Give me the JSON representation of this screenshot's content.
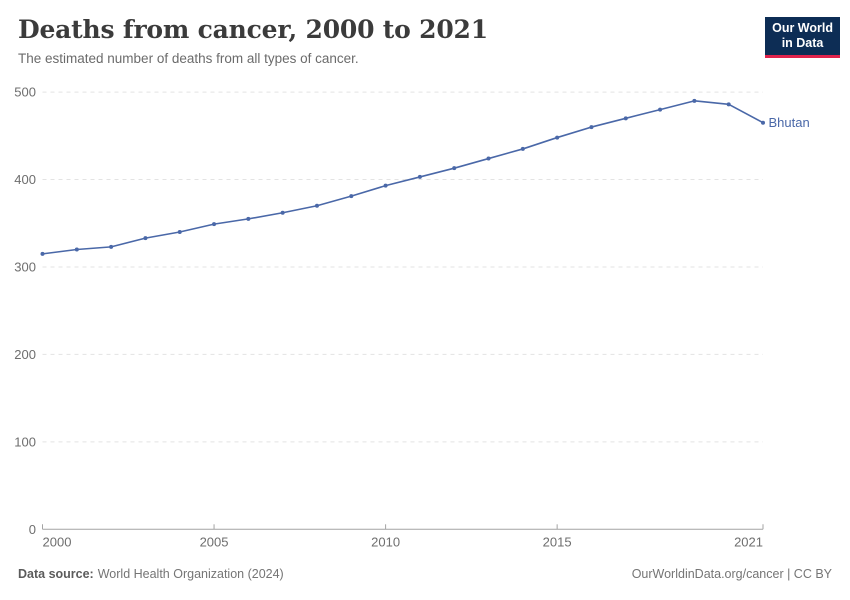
{
  "header": {
    "title": "Deaths from cancer, 2000 to 2021",
    "subtitle": "The estimated number of deaths from all types of cancer.",
    "logo": {
      "line1": "Our World",
      "line2": "in Data",
      "bg_color": "#0d2d55",
      "accent_color": "#e0234c"
    }
  },
  "chart_data": {
    "type": "line",
    "title": "Deaths from cancer, 2000 to 2021",
    "xlabel": "",
    "ylabel": "",
    "xlim": [
      2000,
      2021
    ],
    "ylim": [
      0,
      500
    ],
    "x_ticks": [
      2000,
      2005,
      2010,
      2015,
      2021
    ],
    "y_ticks": [
      0,
      100,
      200,
      300,
      400,
      500
    ],
    "grid": "horizontal-dashed",
    "legend_position": "end-of-line-label",
    "series": [
      {
        "name": "Bhutan",
        "color": "#4a68a8",
        "x": [
          2000,
          2001,
          2002,
          2003,
          2004,
          2005,
          2006,
          2007,
          2008,
          2009,
          2010,
          2011,
          2012,
          2013,
          2014,
          2015,
          2016,
          2017,
          2018,
          2019,
          2020,
          2021
        ],
        "values": [
          315,
          320,
          323,
          333,
          340,
          349,
          355,
          362,
          370,
          381,
          393,
          403,
          413,
          424,
          435,
          448,
          460,
          470,
          480,
          490,
          486,
          465
        ]
      }
    ]
  },
  "footer": {
    "source_label": "Data source:",
    "source_text": "World Health Organization (2024)",
    "license_text": "OurWorldinData.org/cancer | CC BY"
  },
  "colors": {
    "line": "#4a68a8",
    "grid": "#e3e3e3",
    "axis": "#a3a3a3",
    "tick_label": "#6e6e6e",
    "title": "#3b3b3b",
    "subtitle": "#6b6b6b"
  }
}
